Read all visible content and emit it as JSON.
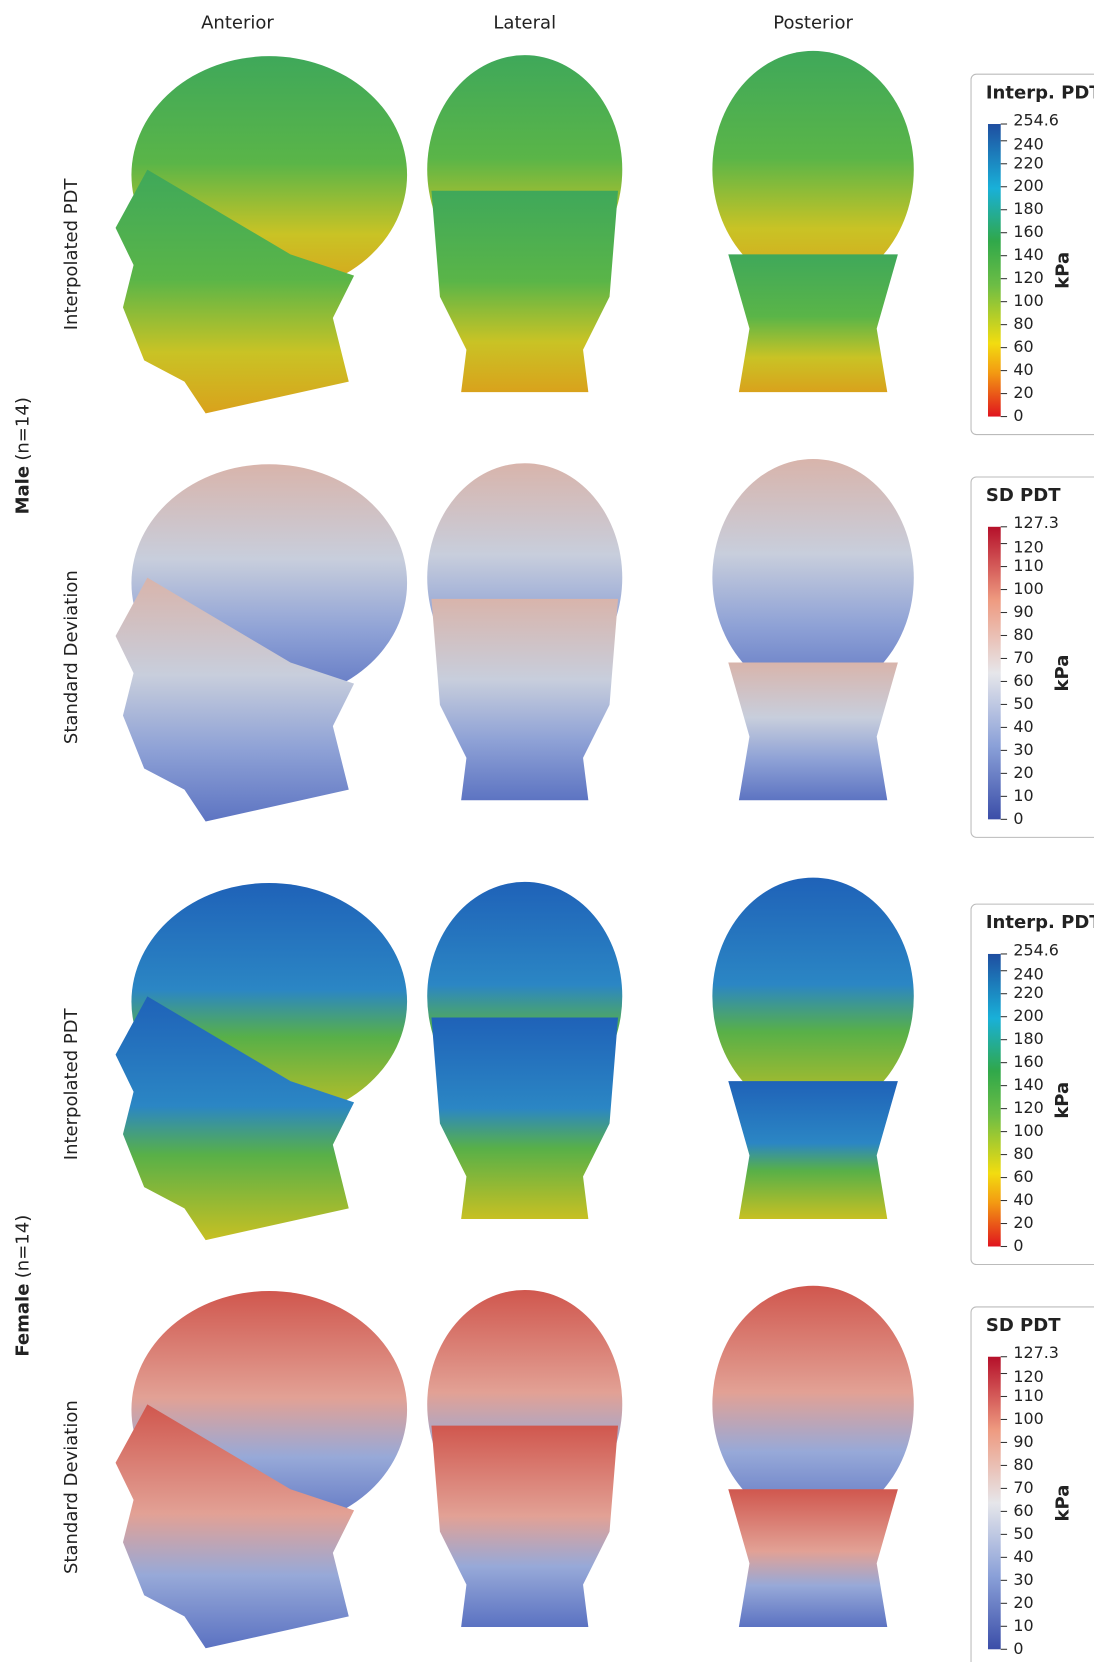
{
  "columns": [
    "Anterior",
    "Lateral",
    "Posterior"
  ],
  "groups": [
    {
      "label": "Male",
      "n": "(n=14)",
      "rows": [
        {
          "label": "Interpolated PDT",
          "legend": {
            "title": "Interp. PDT",
            "unit": "kPa",
            "range": [
              0,
              254.6
            ],
            "ticks": [
              0,
              20,
              40,
              60,
              80,
              100,
              120,
              140,
              160,
              180,
              200,
              220,
              240
            ]
          }
        },
        {
          "label": "Standard Deviation",
          "legend": {
            "title": "SD PDT",
            "unit": "kPa",
            "range": [
              0,
              127.3
            ],
            "ticks": [
              0,
              10,
              20,
              30,
              40,
              50,
              60,
              70,
              80,
              90,
              100,
              110,
              120
            ]
          }
        }
      ]
    },
    {
      "label": "Female",
      "n": "(n=14)",
      "rows": [
        {
          "label": "Interpolated PDT",
          "legend": {
            "title": "Interp. PDT",
            "unit": "kPa",
            "range": [
              0,
              254.6
            ],
            "ticks": [
              0,
              20,
              40,
              60,
              80,
              100,
              120,
              140,
              160,
              180,
              200,
              220,
              240
            ]
          }
        },
        {
          "label": "Standard Deviation",
          "legend": {
            "title": "SD PDT",
            "unit": "kPa",
            "range": [
              0,
              127.3
            ],
            "ticks": [
              0,
              10,
              20,
              30,
              40,
              50,
              60,
              70,
              80,
              90,
              100,
              110,
              120
            ]
          }
        }
      ]
    }
  ]
}
